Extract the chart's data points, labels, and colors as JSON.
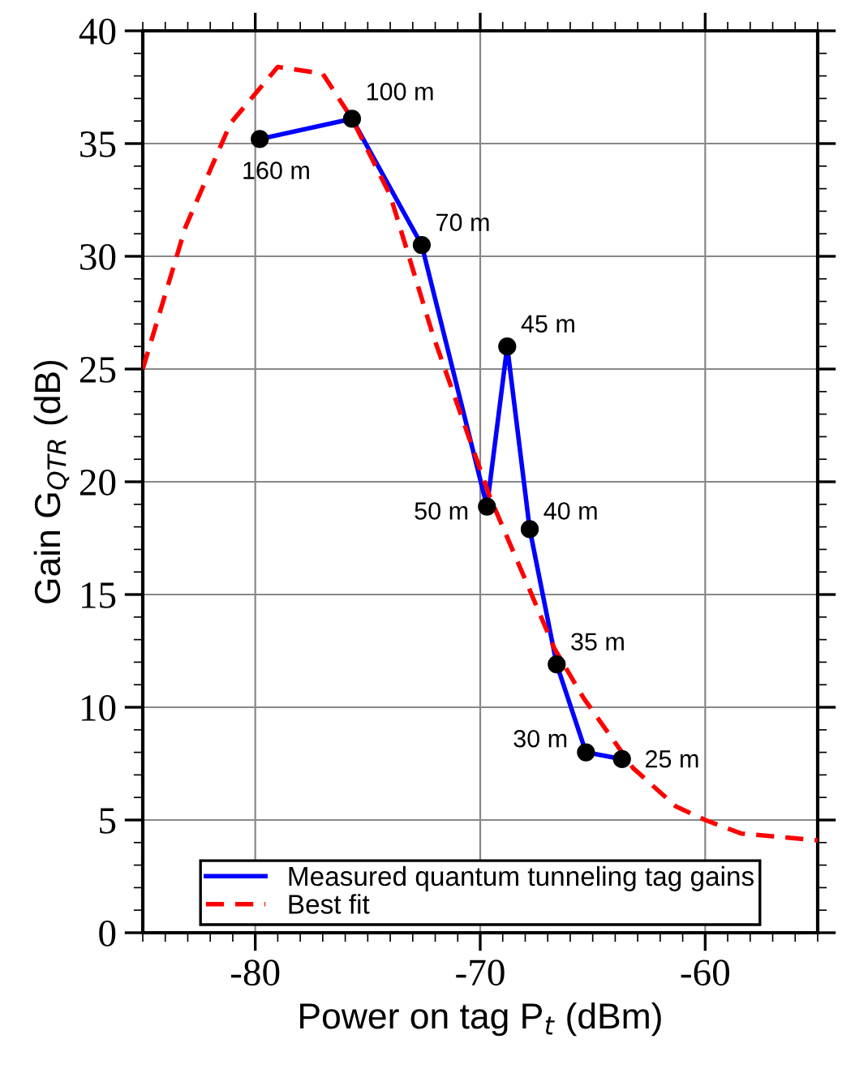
{
  "chart_data": {
    "type": "line",
    "xlabel": "Power on tag P$_{t}$ (dBm)",
    "ylabel": "Gain G$_{QTR}$ (dB)",
    "xlim": [
      -85,
      -55
    ],
    "xticks": [
      -80,
      -70,
      -60
    ],
    "ylim": [
      0,
      40
    ],
    "yticks": [
      0,
      5,
      10,
      15,
      20,
      25,
      30,
      35,
      40
    ],
    "grid": true,
    "legend": "bottom",
    "series": [
      {
        "name": "Measured quantum tunneling tag gains",
        "color": "#0000ff",
        "marker": "circle",
        "line_style": "solid",
        "x": [
          -79.8,
          -75.7,
          -72.6,
          -69.7,
          -68.8,
          -67.8,
          -66.6,
          -65.3,
          -63.7
        ],
        "values": [
          35.2,
          36.1,
          30.5,
          18.9,
          26.0,
          17.9,
          11.9,
          8.0,
          7.7
        ]
      },
      {
        "name": "Best fit",
        "color": "#ff0000",
        "marker": "none",
        "line_style": "dashed",
        "x": [
          -85,
          -83.1,
          -81.1,
          -79.0,
          -77.0,
          -75.7,
          -74.0,
          -72.1,
          -70.9,
          -69.6,
          -67.8,
          -66.7,
          -65.4,
          -63.2,
          -61.3,
          -60.0,
          -58.4,
          -55.0
        ],
        "values": [
          25.0,
          31.3,
          35.9,
          38.4,
          38.1,
          36.1,
          32.7,
          26.5,
          23.1,
          19.4,
          15.2,
          12.6,
          10.4,
          7.3,
          5.6,
          5.0,
          4.4,
          4.1
        ]
      }
    ],
    "annotations": [
      {
        "text": "160 m",
        "x": -79.8,
        "y": 35.2
      },
      {
        "text": "100 m",
        "x": -75.7,
        "y": 36.1
      },
      {
        "text": "70 m",
        "x": -72.6,
        "y": 30.5
      },
      {
        "text": "50 m",
        "x": -69.7,
        "y": 18.9
      },
      {
        "text": "45 m",
        "x": -68.8,
        "y": 26.0
      },
      {
        "text": "40 m",
        "x": -67.8,
        "y": 17.9
      },
      {
        "text": "35 m",
        "x": -66.6,
        "y": 11.9
      },
      {
        "text": "30 m",
        "x": -65.3,
        "y": 8.0
      },
      {
        "text": "25 m",
        "x": -63.7,
        "y": 7.7
      }
    ]
  }
}
